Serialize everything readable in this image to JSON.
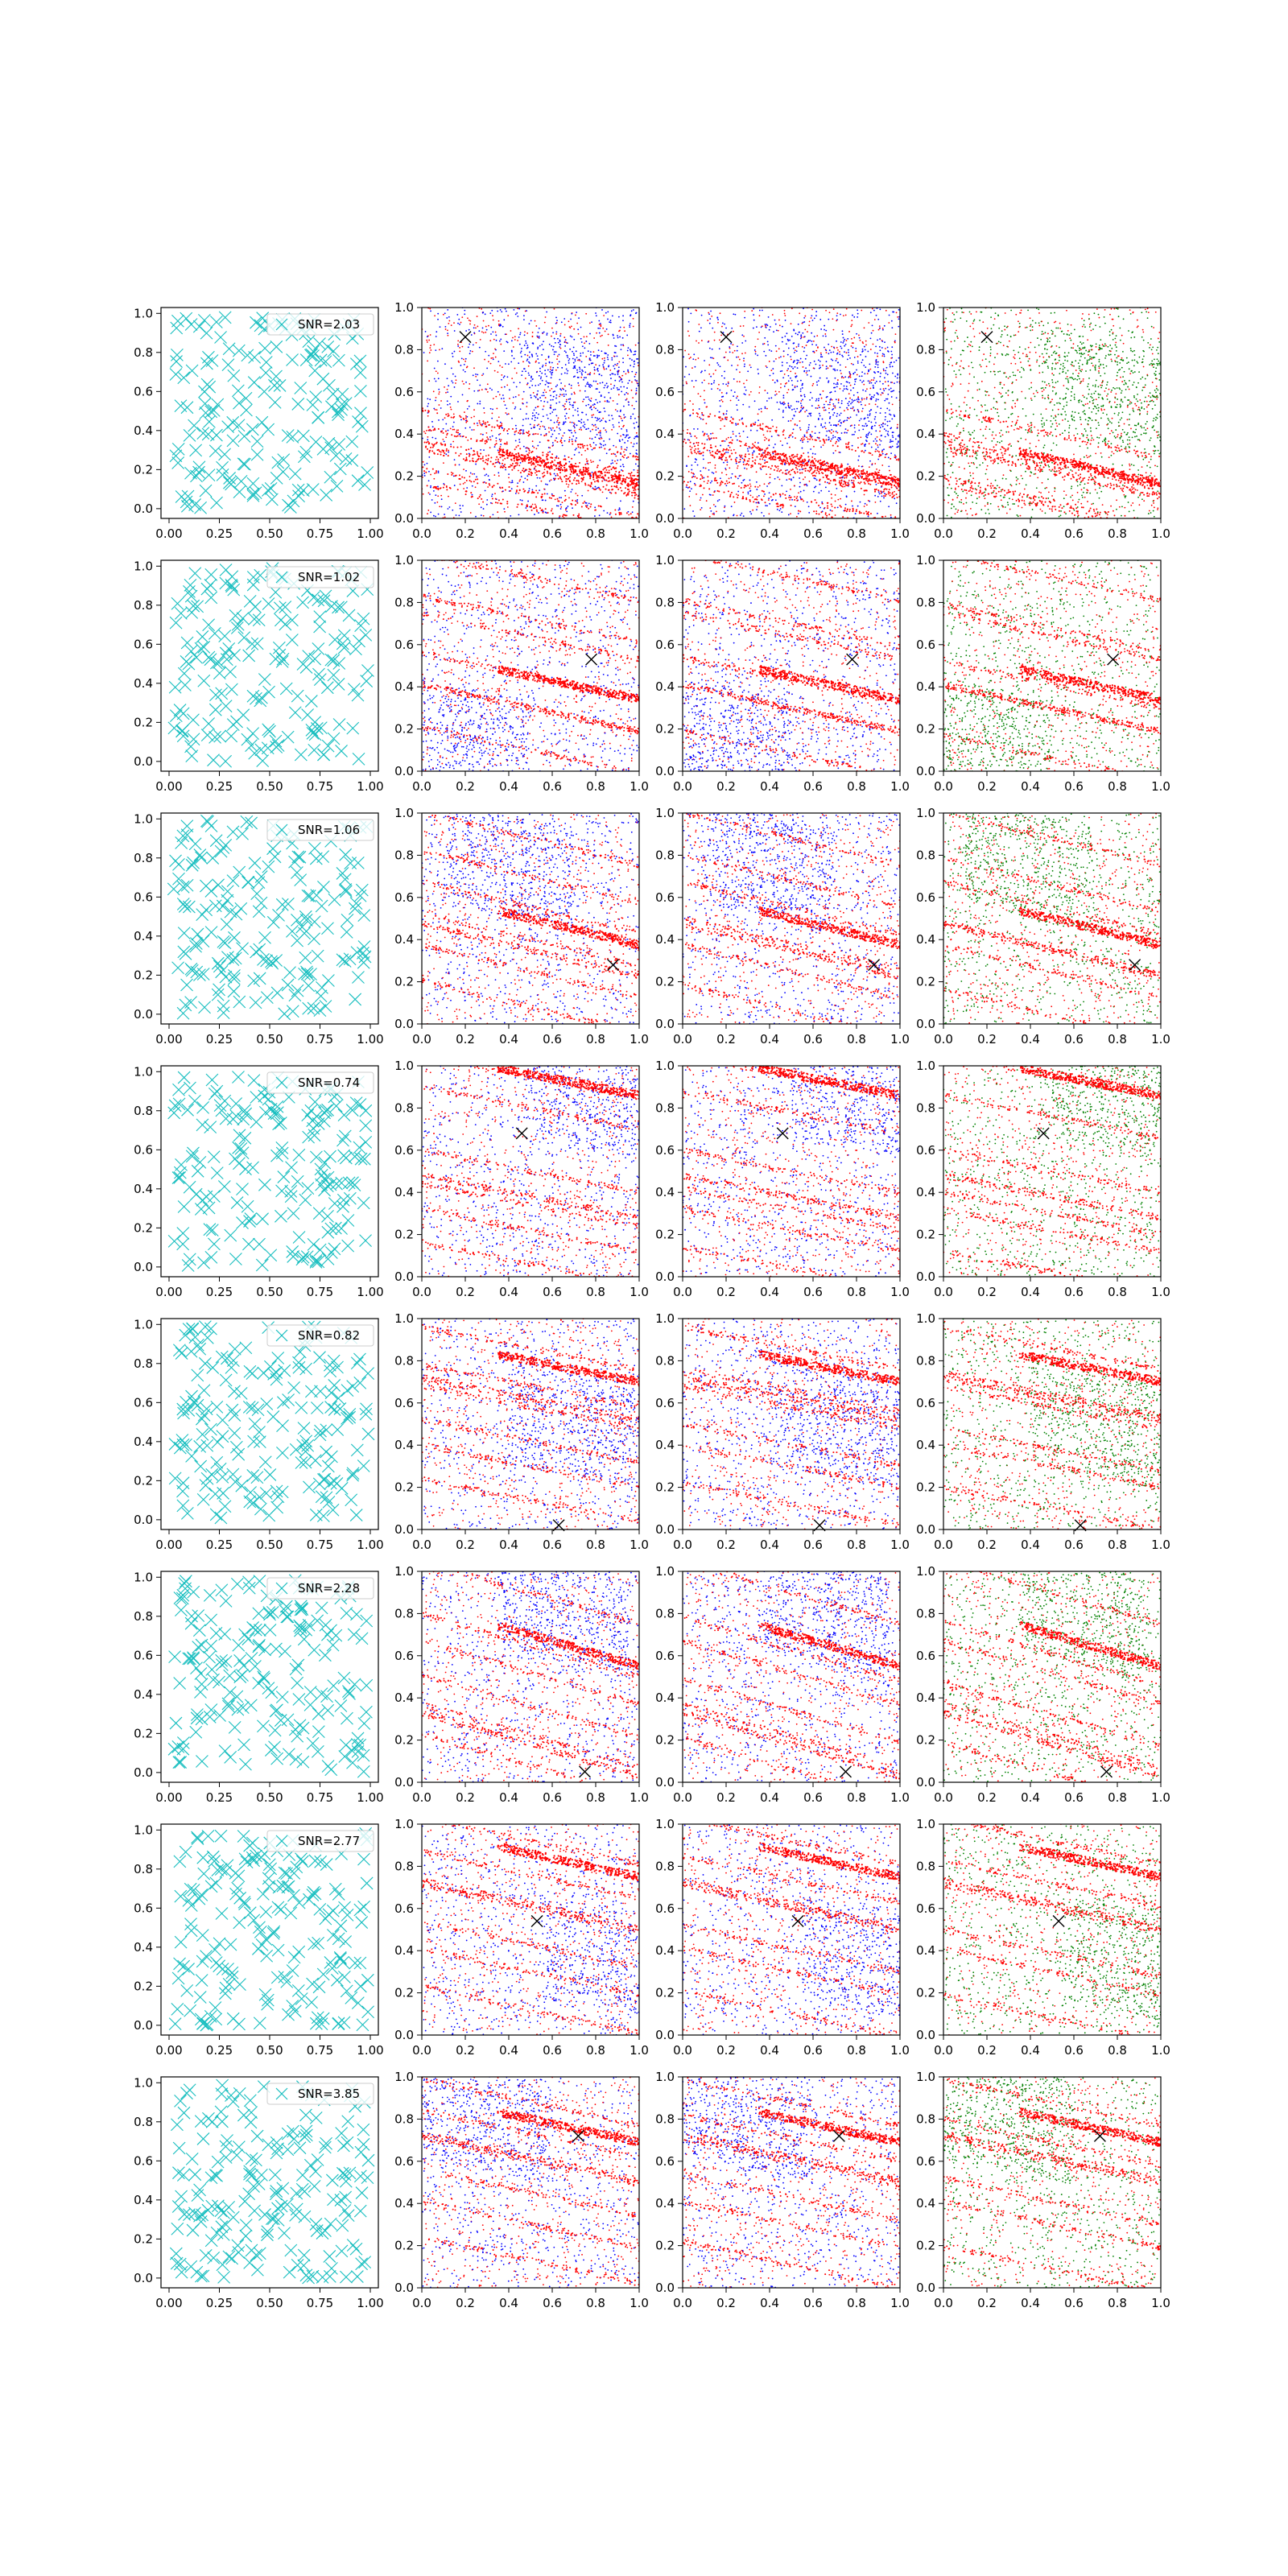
{
  "figure": {
    "rows": 8,
    "cols": 4,
    "background": "#ffffff"
  },
  "colors": {
    "marker_cyan": "#17bebf",
    "scatter_red": "#ff0000",
    "scatter_blue": "#0000ff",
    "scatter_green": "#008000",
    "truth_marker": "#000000"
  },
  "chart_data": {
    "type": "scatter",
    "xlim": [
      0,
      1
    ],
    "ylim": [
      0,
      1
    ],
    "xticks_col1": [
      "0.00",
      "0.25",
      "0.50",
      "0.75",
      "1.00"
    ],
    "xticks_other": [
      "0.0",
      "0.2",
      "0.4",
      "0.6",
      "0.8",
      "1.0"
    ],
    "yticks": [
      "0.0",
      "0.2",
      "0.4",
      "0.6",
      "0.8",
      "1.0"
    ],
    "rows": [
      {
        "snr_label": "SNR=2.03",
        "truth": [
          0.2,
          0.86
        ],
        "slope": -0.23,
        "streaks": [
          0.4,
          0.34,
          0.25,
          0.14,
          0.05
        ],
        "strong": [
          0.28,
          0.22
        ],
        "blue_cluster": [
          0.75,
          0.6
        ]
      },
      {
        "snr_label": "SNR=1.02",
        "truth": [
          0.78,
          0.53
        ],
        "slope": -0.22,
        "streaks": [
          0.92,
          0.74,
          0.64,
          0.47,
          0.3,
          0.12
        ],
        "strong": [
          0.45,
          0.3
        ],
        "blue_cluster": [
          0.2,
          0.15
        ]
      },
      {
        "snr_label": "SNR=1.06",
        "truth": [
          0.88,
          0.28
        ],
        "slope": -0.25,
        "streaks": [
          0.88,
          0.72,
          0.55,
          0.42,
          0.25,
          0.1
        ],
        "strong": [
          0.5,
          0.35
        ],
        "blue_cluster": [
          0.4,
          0.75
        ]
      },
      {
        "snr_label": "SNR=0.74",
        "truth": [
          0.46,
          0.68
        ],
        "slope": -0.2,
        "streaks": [
          0.95,
          0.82,
          0.5,
          0.36,
          0.22,
          0.08
        ],
        "strong": [
          0.96,
          0.38
        ],
        "blue_cluster": [
          0.8,
          0.85
        ]
      },
      {
        "snr_label": "SNR=0.82",
        "truth": [
          0.63,
          0.02
        ],
        "slope": -0.2,
        "streaks": [
          0.86,
          0.7,
          0.58,
          0.44,
          0.3,
          0.16
        ],
        "strong": [
          0.8,
          0.62
        ],
        "blue_cluster": [
          0.7,
          0.5
        ]
      },
      {
        "snr_label": "SNR=2.28",
        "truth": [
          0.75,
          0.05
        ],
        "slope": -0.3,
        "streaks": [
          0.9,
          0.67,
          0.52,
          0.38,
          0.22,
          0.1
        ],
        "strong": [
          0.7,
          0.18
        ],
        "blue_cluster": [
          0.65,
          0.8
        ]
      },
      {
        "snr_label": "SNR=2.77",
        "truth": [
          0.53,
          0.54
        ],
        "slope": -0.22,
        "streaks": [
          0.92,
          0.78,
          0.6,
          0.45,
          0.3,
          0.14
        ],
        "strong": [
          0.86,
          0.62
        ],
        "blue_cluster": [
          0.85,
          0.35
        ]
      },
      {
        "snr_label": "SNR=3.85",
        "truth": [
          0.72,
          0.72
        ],
        "slope": -0.22,
        "streaks": [
          0.88,
          0.75,
          0.6,
          0.47,
          0.3,
          0.15
        ],
        "strong": [
          0.8,
          0.62
        ],
        "blue_cluster": [
          0.3,
          0.8
        ]
      }
    ]
  }
}
